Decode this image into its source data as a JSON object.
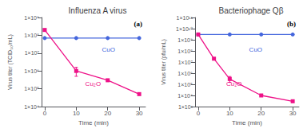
{
  "chart_data": [
    {
      "type": "line",
      "title": "Influenza A virus",
      "x_label": "Time (min)",
      "y_label": "Virus titer (TCID₅₀/mL)",
      "log": "y",
      "grid": false,
      "series": [
        {
          "color": "#4466dd",
          "marker": "circle",
          "x": [
            0,
            10,
            20,
            30
          ],
          "values": [
            70000000,
            70000000,
            70000000,
            70000000
          ]
        },
        {
          "color": "#ee1188",
          "marker": "square",
          "x": [
            0,
            10,
            20,
            30
          ],
          "values": [
            200000000,
            1000000,
            300000,
            50000
          ],
          "yerr_lo": [
            0,
            500000,
            0,
            0
          ],
          "yerr_hi": [
            0,
            600000,
            0,
            0
          ]
        }
      ],
      "xlim": [
        -1,
        32
      ],
      "xticks": [
        0,
        10,
        20,
        30
      ],
      "ylim": [
        10000,
        1000000000
      ],
      "yticks": [
        {
          "value": 10000,
          "label": "1×10⁴"
        },
        {
          "value": 100000,
          "label": "1×10⁵"
        },
        {
          "value": 1000000,
          "label": "1×10⁶"
        },
        {
          "value": 10000000,
          "label": "1×10⁷"
        },
        {
          "value": 100000000,
          "label": "1×10⁸"
        },
        {
          "value": 1000000000,
          "label": "1×10⁹"
        }
      ],
      "annotations": [
        {
          "text": "(a)"
        },
        {
          "text": "CuO",
          "color": "#4466dd"
        },
        {
          "text": "Cu₂O",
          "color": "#ee1188"
        }
      ]
    },
    {
      "type": "line",
      "title": "Bacteriophage Qβ",
      "x_label": "Time (min)",
      "y_label": "Virus titer (pfu/mL)",
      "log": "y",
      "grid": false,
      "series": [
        {
          "color": "#4466dd",
          "marker": "circle",
          "x": [
            0,
            10,
            20,
            30
          ],
          "values": [
            3000000000,
            3000000000,
            3000000000,
            3000000000
          ]
        },
        {
          "color": "#ee1188",
          "marker": "square",
          "x": [
            0,
            5,
            10,
            20,
            30
          ],
          "values": [
            3000000000,
            20000000,
            300000,
            10000,
            3000
          ],
          "yerr_lo": [
            0,
            0,
            150000,
            0,
            0
          ],
          "yerr_hi": [
            0,
            0,
            200000,
            0,
            0
          ]
        }
      ],
      "xlim": [
        -1,
        32
      ],
      "xticks": [
        0,
        10,
        20,
        30
      ],
      "ylim": [
        1000,
        100000000000
      ],
      "yticks": [
        {
          "value": 1000,
          "label": "1×10³"
        },
        {
          "value": 10000,
          "label": "1×10⁴"
        },
        {
          "value": 100000,
          "label": "1×10⁵"
        },
        {
          "value": 1000000,
          "label": "1×10⁶"
        },
        {
          "value": 10000000,
          "label": "1×10⁷"
        },
        {
          "value": 100000000,
          "label": "1×10⁸"
        },
        {
          "value": 1000000000,
          "label": "1×10⁹"
        },
        {
          "value": 10000000000,
          "label": "1×10¹⁰"
        },
        {
          "value": 100000000000,
          "label": "1×10¹¹"
        }
      ],
      "annotations": [
        {
          "text": "(b)"
        },
        {
          "text": "CuO",
          "color": "#4466dd"
        },
        {
          "text": "Cu₂O",
          "color": "#ee1188"
        }
      ]
    }
  ]
}
